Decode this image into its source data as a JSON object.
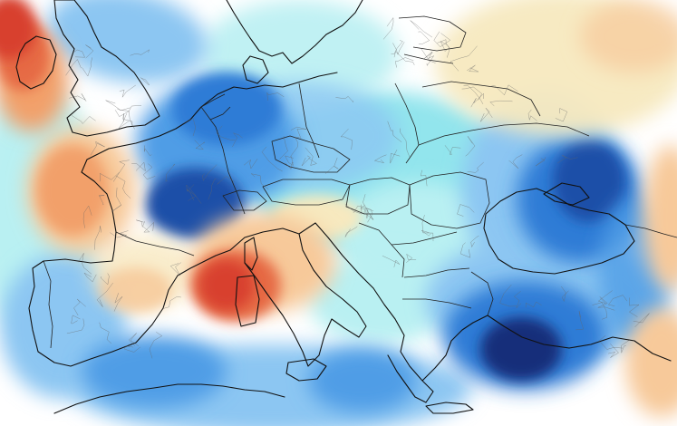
{
  "map": {
    "type": "weather anomaly map",
    "region": "Europe",
    "legend_shown": false,
    "colors": {
      "background": "#ffffff",
      "light_cyan": "#b9f0f2",
      "cyan": "#7fe0ea",
      "light_blue": "#8cc6f2",
      "blue": "#4f9de6",
      "mid_blue": "#2f7bd6",
      "dark_blue": "#1f4fa8",
      "navy": "#172f7a",
      "pale_yellow": "#f7e9bf",
      "light_orange": "#f7c99a",
      "orange": "#f2a06a",
      "red_orange": "#e66a45",
      "red": "#d8412e",
      "coastline": "#111111",
      "borders": "#222222"
    }
  }
}
